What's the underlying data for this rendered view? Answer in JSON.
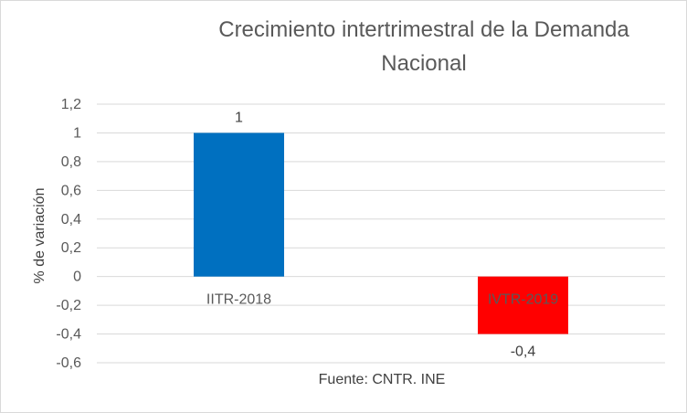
{
  "chart_data": {
    "type": "bar",
    "title_lines": [
      "Crecimiento intertrimestral de la Demanda",
      "Nacional"
    ],
    "ylabel": "% de variación",
    "xlabel": "",
    "categories": [
      "IITR-2018",
      "IVTR-2019"
    ],
    "values": [
      1,
      -0.4
    ],
    "data_labels": [
      "1",
      "-0,4"
    ],
    "bar_colors": [
      "#0070C0",
      "#FF0000"
    ],
    "ylim": [
      -0.6,
      1.2
    ],
    "y_ticks": [
      -0.6,
      -0.4,
      -0.2,
      0,
      0.2,
      0.4,
      0.6,
      0.8,
      1,
      1.2
    ],
    "y_tick_labels": [
      "-0,6",
      "-0,4",
      "-0,2",
      "0",
      "0,2",
      "0,4",
      "0,6",
      "0,8",
      "1",
      "1,2"
    ],
    "grid": true,
    "legend": "none",
    "source_note": "Fuente: CNTR. INE"
  }
}
